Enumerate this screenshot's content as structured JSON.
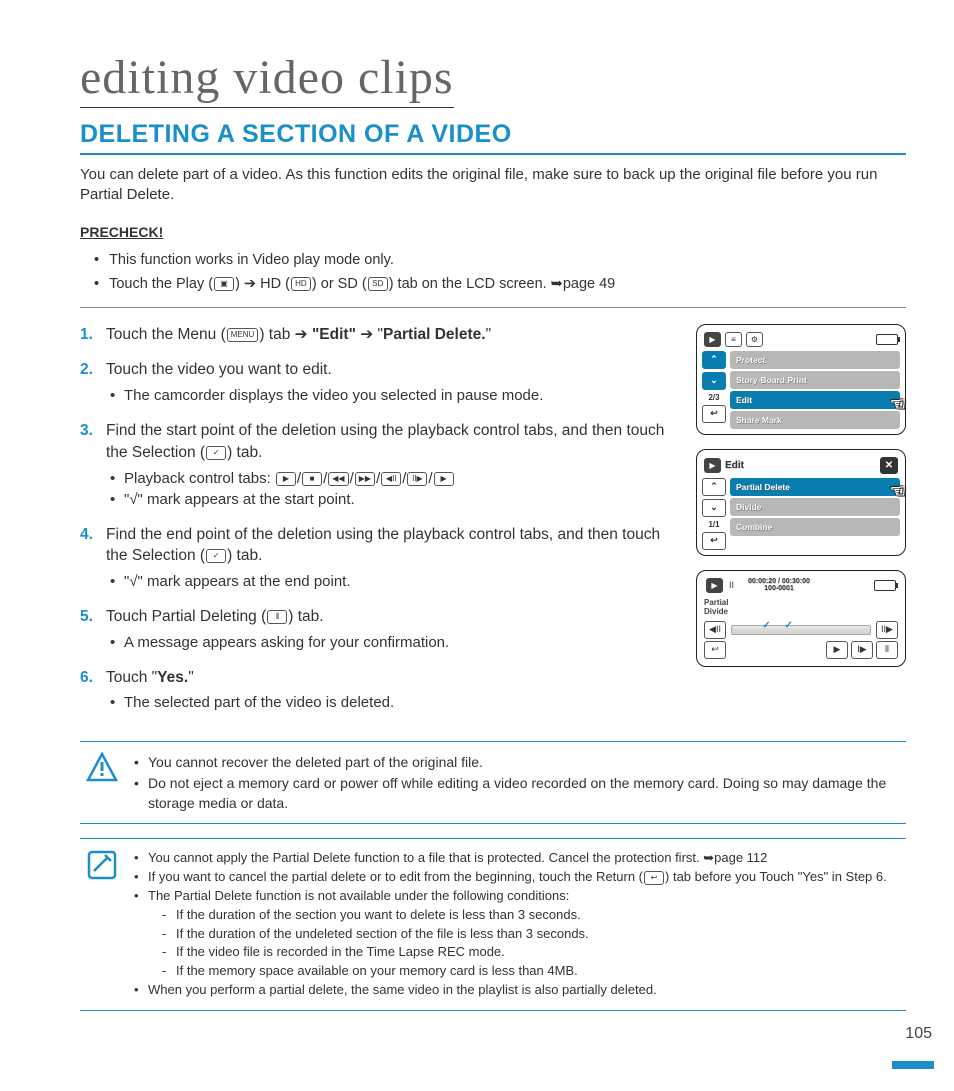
{
  "pageNumber": "105",
  "colors": {
    "accent": "#1a8fc9",
    "text": "#333",
    "menuGrey": "#b8b7b5"
  },
  "chapterTitle": "editing video clips",
  "sectionTitle": "DELETING A SECTION OF A VIDEO",
  "intro": "You can delete part of a video. As this function edits the original file, make sure to back up the original file before you run Partial Delete.",
  "precheck": {
    "heading": "PRECHECK!",
    "items": [
      "This function works in Video play mode only.",
      {
        "pre": "Touch the Play (",
        "ic1": "▣",
        "mid1": ") ➔ HD (",
        "ic2": "HD",
        "mid2": ") or SD (",
        "ic3": "SD",
        "post": ") tab on the LCD screen. ➥page 49"
      }
    ]
  },
  "steps": [
    {
      "text": [
        {
          "t": "Touch the Menu ("
        },
        {
          "ic": "MENU"
        },
        {
          "t": ") tab ➔ "
        },
        {
          "b": "\"Edit\""
        },
        {
          "t": " ➔ \""
        },
        {
          "b": "Partial Delete."
        },
        {
          "t": "\""
        }
      ]
    },
    {
      "text": [
        {
          "t": "Touch the video you want to edit."
        }
      ],
      "subs": [
        "The camcorder displays the video you selected in pause mode."
      ]
    },
    {
      "text": [
        {
          "t": "Find the start point of the deletion using the playback control tabs, and then touch the Selection ("
        },
        {
          "ic": "✓"
        },
        {
          "t": ") tab."
        }
      ],
      "subs_rich": [
        [
          {
            "t": "Playback control tabs: "
          },
          {
            "ic": "▶"
          },
          {
            "t": "/"
          },
          {
            "ic": "■"
          },
          {
            "t": "/"
          },
          {
            "ic": "◀◀"
          },
          {
            "t": "/"
          },
          {
            "ic": "▶▶"
          },
          {
            "t": "/"
          },
          {
            "ic": "◀II"
          },
          {
            "t": "/"
          },
          {
            "ic": "II▶"
          },
          {
            "t": "/"
          },
          {
            "ic": "▶"
          }
        ]
      ],
      "subs": [
        "\"√\" mark appears at the start point."
      ]
    },
    {
      "text": [
        {
          "t": "Find the end point of the deletion using the playback control tabs, and then touch the Selection ("
        },
        {
          "ic": "✓"
        },
        {
          "t": ") tab."
        }
      ],
      "subs": [
        "\"√\" mark appears at the end point."
      ]
    },
    {
      "text": [
        {
          "t": "Touch Partial Deleting ("
        },
        {
          "ic": "⦀"
        },
        {
          "t": ") tab."
        }
      ],
      "subs": [
        "A message appears asking for your confirmation."
      ]
    },
    {
      "text": [
        {
          "t": "Touch \""
        },
        {
          "b": "Yes."
        },
        {
          "t": "\""
        }
      ],
      "subs": [
        "The selected part of the video is deleted."
      ]
    }
  ],
  "screens": {
    "menu": {
      "pageInd": "2/3",
      "items": [
        {
          "l": "Protect"
        },
        {
          "l": "Story-Board Print"
        },
        {
          "l": "Edit",
          "sel": true,
          "hand": true
        },
        {
          "l": "Share Mark"
        }
      ]
    },
    "edit": {
      "title": "Edit",
      "pageInd": "1/1",
      "items": [
        {
          "l": "Partial Delete",
          "sel": true,
          "hand": true
        },
        {
          "l": "Divide"
        },
        {
          "l": "Combine"
        }
      ]
    },
    "pd": {
      "timecode": "00:00:20 / 00:30:00",
      "clip": "100-0001",
      "label1": "Partial",
      "label2": "Divide",
      "controls": [
        "◀II",
        "II▶",
        "↩",
        "▶",
        "I▶",
        "⦀"
      ]
    }
  },
  "warning": [
    "You cannot recover the deleted part of the original file.",
    "Do not eject a memory card or power off while editing a video recorded on the memory card. Doing so may damage the storage media or data."
  ],
  "notes": {
    "items": [
      "You cannot apply the Partial Delete function to a file that is protected. Cancel the protection first. ➥page 112",
      {
        "pre": "If you want to cancel the partial delete or to edit from the beginning, touch the Return (",
        "ic": "↩",
        "post": ") tab before you Touch \"Yes\" in Step 6."
      },
      "The Partial Delete function is not available under the following conditions:",
      "When you perform a partial delete, the same video in the playlist is also partially deleted."
    ],
    "conditions": [
      "If the duration of the section you want to delete is less than 3 seconds.",
      "If the duration of the undeleted section of the file is less than 3 seconds.",
      "If the video file is recorded in the Time Lapse REC mode.",
      "If the memory space available on your memory card is less than 4MB."
    ]
  }
}
